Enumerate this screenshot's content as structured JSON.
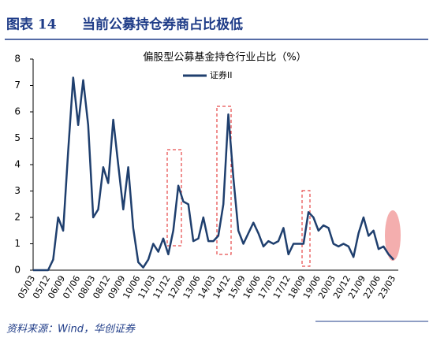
{
  "chart_data": {
    "type": "line",
    "figure_label": "图表 14",
    "title": "当前公募持仓券商占比极低",
    "subtitle": "偏股型公募基金持仓行业占比（%）",
    "source": "资料来源：Wind，华创证券",
    "categories": [
      "05/03",
      null,
      null,
      "05/12",
      null,
      null,
      "06/09",
      null,
      null,
      "07/06",
      null,
      null,
      "08/03",
      null,
      null,
      "08/12",
      null,
      null,
      "09/09",
      null,
      null,
      "10/06",
      null,
      null,
      "11/03",
      null,
      null,
      "11/12",
      null,
      null,
      "12/09",
      null,
      null,
      "13/06",
      null,
      null,
      "14/03",
      null,
      null,
      "14/12",
      null,
      null,
      "15/09",
      null,
      null,
      "16/06",
      null,
      null,
      "17/03",
      null,
      null,
      "17/12",
      null,
      null,
      "18/09",
      null,
      null,
      "19/06",
      null,
      null,
      "20/03",
      null,
      null,
      "20/12",
      null,
      null,
      "21/09",
      null,
      null,
      "22/06",
      null,
      null,
      "23/03"
    ],
    "series": [
      {
        "name": "证券II",
        "color": "#1f3f6e",
        "values": [
          0,
          0,
          0,
          0,
          0.4,
          2.0,
          1.5,
          4.5,
          7.3,
          5.5,
          7.2,
          5.5,
          2.0,
          2.3,
          3.9,
          3.3,
          5.7,
          4.0,
          2.3,
          3.9,
          1.6,
          0.3,
          0.1,
          0.4,
          1.0,
          0.7,
          1.2,
          0.6,
          1.5,
          3.2,
          2.6,
          2.5,
          1.1,
          1.2,
          2.0,
          1.1,
          1.1,
          1.3,
          2.5,
          5.9,
          3.5,
          1.5,
          1.0,
          1.4,
          1.8,
          1.4,
          0.9,
          1.1,
          1.0,
          1.1,
          1.6,
          0.6,
          1.0,
          1.0,
          1.0,
          2.2,
          2.0,
          1.5,
          1.7,
          1.6,
          1.0,
          0.9,
          1.0,
          0.9,
          0.5,
          1.4,
          2.0,
          1.3,
          1.5,
          0.8,
          0.9,
          0.6,
          0.4
        ]
      }
    ],
    "ylim": [
      0,
      8
    ],
    "yticks": [
      0,
      1,
      2,
      3,
      4,
      5,
      6,
      7,
      8
    ],
    "grid": false
  }
}
